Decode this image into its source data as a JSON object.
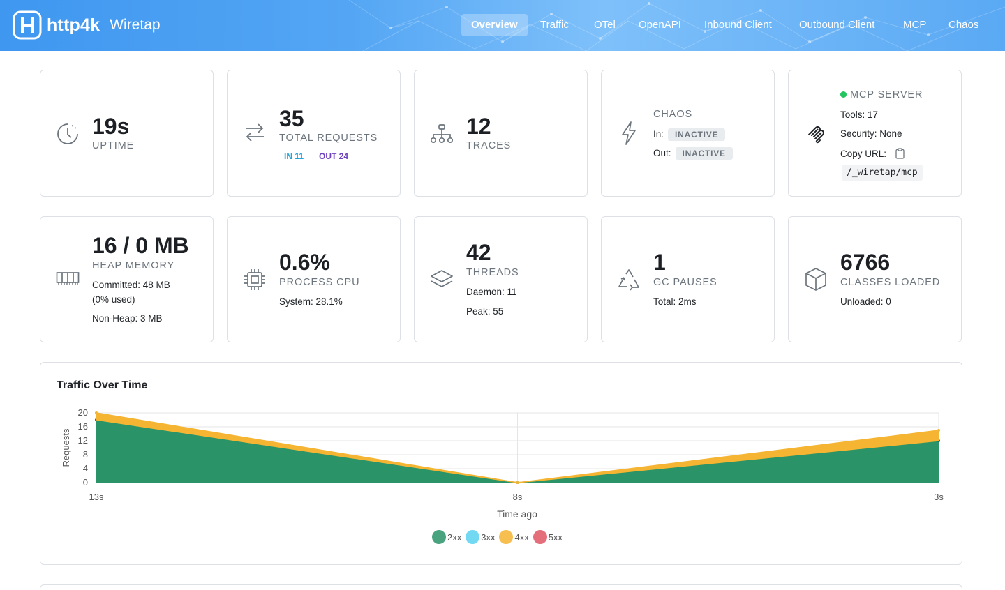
{
  "brand": {
    "name": "http4k",
    "sub": "Wiretap"
  },
  "nav": [
    {
      "label": "Overview",
      "active": true
    },
    {
      "label": "Traffic"
    },
    {
      "label": "OTel"
    },
    {
      "label": "OpenAPI"
    },
    {
      "label": "Inbound Client"
    },
    {
      "label": "Outbound Client"
    },
    {
      "label": "MCP"
    },
    {
      "label": "Chaos"
    }
  ],
  "stats": {
    "uptime": {
      "value": "19s",
      "label": "UPTIME"
    },
    "requests": {
      "value": "35",
      "label": "TOTAL REQUESTS",
      "in": "IN 11",
      "out": "OUT 24"
    },
    "traces": {
      "value": "12",
      "label": "TRACES"
    },
    "chaos": {
      "label": "CHAOS",
      "in_label": "In:",
      "in_status": "INACTIVE",
      "out_label": "Out:",
      "out_status": "INACTIVE"
    },
    "mcp": {
      "label": "MCP SERVER",
      "tools": "Tools: 17",
      "security": "Security: None",
      "copy_url": "Copy URL:",
      "path": "/_wiretap/mcp"
    },
    "heap": {
      "value": "16 / 0 MB",
      "label": "HEAP MEMORY",
      "committed": "Committed: 48 MB",
      "used": "(0% used)",
      "nonheap": "Non-Heap: 3 MB"
    },
    "cpu": {
      "value": "0.6%",
      "label": "PROCESS CPU",
      "system": "System: 28.1%"
    },
    "threads": {
      "value": "42",
      "label": "THREADS",
      "daemon": "Daemon: 11",
      "peak": "Peak: 55"
    },
    "gc": {
      "value": "1",
      "label": "GC PAUSES",
      "total": "Total: 2ms"
    },
    "classes": {
      "value": "6766",
      "label": "CLASSES LOADED",
      "unloaded": "Unloaded: 0"
    }
  },
  "colors": {
    "accent": "#3f97f0",
    "c2xx": "#2a9468",
    "c3xx": "#5bd2f0",
    "c4xx": "#f5b432",
    "c5xx": "#e05563"
  },
  "chart_data": {
    "type": "area",
    "title": "Traffic Over Time",
    "xlabel": "Time ago",
    "ylabel": "Requests",
    "categories": [
      "13s",
      "8s",
      "3s"
    ],
    "ylim": [
      0,
      20
    ],
    "yticks": [
      0,
      4,
      8,
      12,
      16,
      20
    ],
    "stacked": true,
    "grid": true,
    "legend_position": "bottom",
    "series": [
      {
        "name": "2xx",
        "values": [
          18,
          0,
          12
        ],
        "color": "#2a9468"
      },
      {
        "name": "3xx",
        "values": [
          0,
          0,
          0
        ],
        "color": "#5bd2f0"
      },
      {
        "name": "4xx",
        "values": [
          2,
          0,
          3
        ],
        "color": "#f5b432"
      },
      {
        "name": "5xx",
        "values": [
          0,
          0,
          0
        ],
        "color": "#e05563"
      }
    ]
  }
}
